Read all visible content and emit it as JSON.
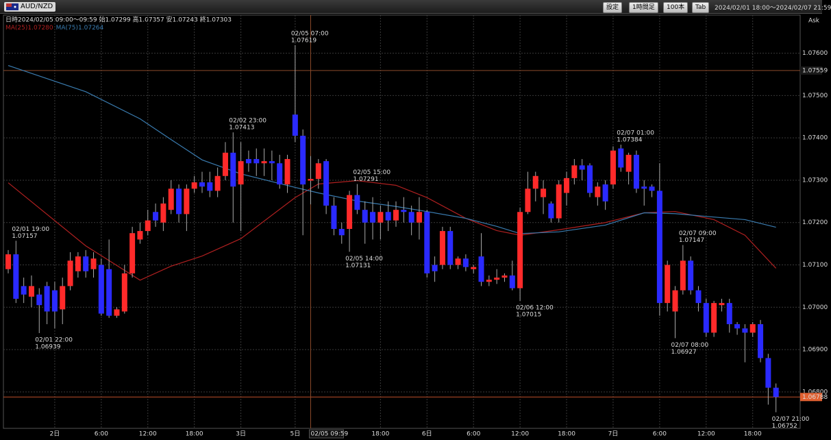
{
  "header": {
    "symbol": "AUD/NZD",
    "buttons": [
      "設定",
      "1時間足",
      "100本",
      "Tab"
    ],
    "range": "2024/02/01 18:00〜2024/02/07 21:59"
  },
  "chart_data": {
    "type": "candlestick",
    "info": "日時2024/02/05 09:00〜09:59 始1.07299 高1.07357 安1.07243 終1.07303",
    "price_side": "Ask",
    "up_color": "#ff2a2a",
    "down_color": "#2a2aff",
    "open": [
      1.0709,
      1.07125,
      1.0705,
      1.07025,
      1.0703,
      1.0705,
      1.0704,
      1.06995,
      1.0705,
      1.07085,
      1.0712,
      1.0709,
      1.071,
      1.0709,
      1.0698,
      1.0699,
      1.0708,
      1.0716,
      1.0718,
      1.07225,
      1.072,
      1.0723,
      1.0728,
      1.0722,
      1.0728,
      1.07295,
      1.07295,
      1.07275,
      1.0731,
      1.07365,
      1.0729,
      1.0735,
      1.0735,
      1.0734,
      1.07345,
      1.0734,
      1.0729,
      1.07455,
      1.07405,
      1.07299,
      1.07303,
      1.07345,
      1.0724,
      1.07185,
      1.07185,
      1.07265,
      1.0723,
      1.07225,
      1.072,
      1.07225,
      1.07205,
      1.0723,
      1.07225,
      1.072,
      1.07225,
      1.071,
      1.071,
      1.0718,
      1.071,
      1.07115,
      1.0709,
      1.0712,
      1.0706,
      1.07065,
      1.0707,
      1.07075,
      1.07045,
      1.07225,
      1.0728,
      1.0726,
      1.07245,
      1.0721,
      1.0727,
      1.07305,
      1.07335,
      1.07335,
      1.0726,
      1.0729,
      1.0729,
      1.07375,
      1.0732,
      1.0736,
      1.07285,
      1.07285,
      1.07275,
      1.0701,
      1.0699,
      1.0704,
      1.0711,
      1.0704,
      1.0701,
      1.0694,
      1.07005,
      1.0701,
      1.0696,
      1.0695,
      1.0694,
      1.0696,
      1.0688,
      1.0681
    ],
    "high": [
      1.07135,
      1.07157,
      1.0707,
      1.07075,
      1.07045,
      1.0706,
      1.0706,
      1.0707,
      1.0713,
      1.0713,
      1.07135,
      1.0713,
      1.07115,
      1.0716,
      1.07,
      1.071,
      1.0719,
      1.072,
      1.0723,
      1.07245,
      1.0726,
      1.073,
      1.0729,
      1.0729,
      1.0731,
      1.0732,
      1.0732,
      1.0733,
      1.0739,
      1.07413,
      1.0739,
      1.0737,
      1.07375,
      1.07375,
      1.0737,
      1.0736,
      1.0736,
      1.07619,
      1.0742,
      1.07357,
      1.0735,
      1.0735,
      1.0726,
      1.072,
      1.07275,
      1.07291,
      1.0725,
      1.0726,
      1.0724,
      1.0725,
      1.0725,
      1.0726,
      1.0724,
      1.0726,
      1.0723,
      1.0712,
      1.0719,
      1.0719,
      1.0712,
      1.07125,
      1.071,
      1.07175,
      1.07075,
      1.0709,
      1.0708,
      1.0711,
      1.07235,
      1.0732,
      1.0732,
      1.073,
      1.0725,
      1.073,
      1.0732,
      1.0735,
      1.0735,
      1.0734,
      1.07295,
      1.073,
      1.0738,
      1.07384,
      1.07365,
      1.0737,
      1.073,
      1.0729,
      1.0734,
      1.0711,
      1.0705,
      1.07147,
      1.0712,
      1.0705,
      1.0702,
      1.07015,
      1.0702,
      1.0702,
      1.06965,
      1.0696,
      1.06965,
      1.0697,
      1.0689,
      1.0682
    ],
    "low": [
      1.0708,
      1.0701,
      1.0701,
      1.07,
      1.06939,
      1.0696,
      1.0695,
      1.0696,
      1.0704,
      1.0707,
      1.0707,
      1.0707,
      1.0698,
      1.06975,
      1.06975,
      1.06985,
      1.0707,
      1.0715,
      1.0717,
      1.0719,
      1.0718,
      1.0722,
      1.072,
      1.0718,
      1.0727,
      1.0727,
      1.0726,
      1.0726,
      1.073,
      1.072,
      1.0718,
      1.0732,
      1.0731,
      1.0731,
      1.073,
      1.0728,
      1.0727,
      1.0739,
      1.0717,
      1.07243,
      1.0728,
      1.0722,
      1.0717,
      1.0715,
      1.07131,
      1.0722,
      1.0715,
      1.0716,
      1.0716,
      1.0718,
      1.0719,
      1.072,
      1.0717,
      1.0716,
      1.0707,
      1.0706,
      1.0709,
      1.0709,
      1.0709,
      1.07085,
      1.0708,
      1.0705,
      1.0705,
      1.07055,
      1.0706,
      1.0704,
      1.07015,
      1.0722,
      1.0725,
      1.0722,
      1.072,
      1.072,
      1.0724,
      1.0729,
      1.073,
      1.0726,
      1.0724,
      1.0723,
      1.0728,
      1.0732,
      1.0729,
      1.0727,
      1.0724,
      1.0726,
      1.0698,
      1.0699,
      1.06927,
      1.0703,
      1.0703,
      1.0699,
      1.0693,
      1.0693,
      1.0699,
      1.0694,
      1.06935,
      1.0687,
      1.0693,
      1.0687,
      1.0677,
      1.06752
    ],
    "close": [
      1.07125,
      1.0702,
      1.0703,
      1.0705,
      1.07005,
      1.0699,
      1.0699,
      1.0705,
      1.0711,
      1.0712,
      1.07085,
      1.07115,
      1.06985,
      1.0698,
      1.06995,
      1.0708,
      1.07175,
      1.0718,
      1.07205,
      1.07205,
      1.07245,
      1.0728,
      1.0722,
      1.0728,
      1.07295,
      1.07285,
      1.07275,
      1.0731,
      1.07365,
      1.07285,
      1.07345,
      1.0734,
      1.0734,
      1.07345,
      1.0734,
      1.0729,
      1.0735,
      1.07405,
      1.0729,
      1.07303,
      1.0734,
      1.0724,
      1.07185,
      1.0717,
      1.07265,
      1.0723,
      1.072,
      1.072,
      1.07225,
      1.07205,
      1.0723,
      1.07225,
      1.072,
      1.07225,
      1.0708,
      1.07085,
      1.0718,
      1.071,
      1.07115,
      1.07095,
      1.07095,
      1.0706,
      1.07065,
      1.0707,
      1.07075,
      1.07045,
      1.07225,
      1.0728,
      1.0731,
      1.0728,
      1.0721,
      1.0729,
      1.07305,
      1.07335,
      1.07325,
      1.0727,
      1.07285,
      1.0725,
      1.0737,
      1.0733,
      1.0736,
      1.0728,
      1.0728,
      1.07275,
      1.0701,
      1.071,
      1.0704,
      1.0711,
      1.0704,
      1.0701,
      1.0694,
      1.0701,
      1.0701,
      1.0696,
      1.0695,
      1.0694,
      1.0696,
      1.0688,
      1.0681,
      1.06788
    ],
    "series": [
      {
        "name": "MA(25)",
        "legend_value": "1.07280",
        "color": "#b02020",
        "x": [
          0,
          10,
          17,
          21,
          25,
          30,
          37,
          40,
          45,
          50,
          54,
          59,
          63,
          66,
          71,
          77,
          82,
          86,
          91,
          95,
          99
        ],
        "values": [
          1.07294,
          1.07145,
          1.07064,
          1.07097,
          1.07121,
          1.07162,
          1.07259,
          1.07291,
          1.07299,
          1.07288,
          1.07259,
          1.0721,
          1.07181,
          1.0717,
          1.07183,
          1.072,
          1.07223,
          1.07226,
          1.07207,
          1.0717,
          1.07092
        ]
      },
      {
        "name": "MA(75)",
        "legend_value": "1.07264",
        "color": "#3a7cb0",
        "x": [
          0,
          10,
          17,
          21,
          25,
          30,
          37,
          40,
          45,
          50,
          54,
          59,
          63,
          66,
          71,
          77,
          82,
          86,
          91,
          95,
          99
        ],
        "values": [
          1.07571,
          1.07509,
          1.07445,
          1.07396,
          1.07348,
          1.07315,
          1.07283,
          1.0727,
          1.07251,
          1.07238,
          1.07226,
          1.0721,
          1.07191,
          1.07174,
          1.07178,
          1.07194,
          1.07223,
          1.07221,
          1.07213,
          1.07207,
          1.07189
        ]
      }
    ],
    "annotations": [
      {
        "time": "02/01 19:00",
        "price": 1.07157,
        "at": "high"
      },
      {
        "time": "02/01 22:00",
        "price": 1.06939,
        "at": "low"
      },
      {
        "time": "02/02 23:00",
        "price": 1.07413,
        "at": "high"
      },
      {
        "time": "02/05 07:00",
        "price": 1.07619,
        "at": "high"
      },
      {
        "time": "02/05 15:00",
        "price": 1.07291,
        "at": "high"
      },
      {
        "time": "02/05 14:00",
        "price": 1.07131,
        "at": "low"
      },
      {
        "time": "02/06 12:00",
        "price": 1.07015,
        "at": "low"
      },
      {
        "time": "02/07 01:00",
        "price": 1.07384,
        "at": "high"
      },
      {
        "time": "02/07 09:00",
        "price": 1.07147,
        "at": "high"
      },
      {
        "time": "02/07 08:00",
        "price": 1.06927,
        "at": "low"
      },
      {
        "time": "02/07 21:00",
        "price": 1.06752,
        "at": "low"
      }
    ],
    "price_lines": [
      {
        "value": 1.07559,
        "style": "alert"
      },
      {
        "value": 1.06788,
        "style": "current"
      }
    ],
    "cursor": {
      "label": "02/05 09:59",
      "at": 39
    },
    "ylim": [
      1.06714,
      1.0769
    ],
    "yticks": [
      {
        "value": 1.068,
        "label": "1.06800"
      },
      {
        "value": 1.069,
        "label": "1.06900"
      },
      {
        "value": 1.07,
        "label": "1.07000"
      },
      {
        "value": 1.071,
        "label": "1.07100"
      },
      {
        "value": 1.072,
        "label": "1.07200"
      },
      {
        "value": 1.073,
        "label": "1.07300"
      },
      {
        "value": 1.074,
        "label": "1.07400"
      },
      {
        "value": 1.075,
        "label": "1.07500"
      },
      {
        "value": 1.076,
        "label": "1.07600"
      }
    ],
    "xticks": [
      {
        "value": 6,
        "label": "2日"
      },
      {
        "value": 12,
        "label": "6:00"
      },
      {
        "value": 18,
        "label": "12:00"
      },
      {
        "value": 24,
        "label": "18:00"
      },
      {
        "value": 30,
        "label": "3日"
      },
      {
        "value": 37,
        "label": "5日"
      },
      {
        "value": 48,
        "label": "18:00"
      },
      {
        "value": 54,
        "label": "6日"
      },
      {
        "value": 60,
        "label": "6:00"
      },
      {
        "value": 66,
        "label": "12:00"
      },
      {
        "value": 72,
        "label": "18:00"
      },
      {
        "value": 78,
        "label": "7日"
      },
      {
        "value": 84,
        "label": "6:00"
      },
      {
        "value": 90,
        "label": "12:00"
      },
      {
        "value": 96,
        "label": "18:00"
      }
    ],
    "grid": true
  }
}
